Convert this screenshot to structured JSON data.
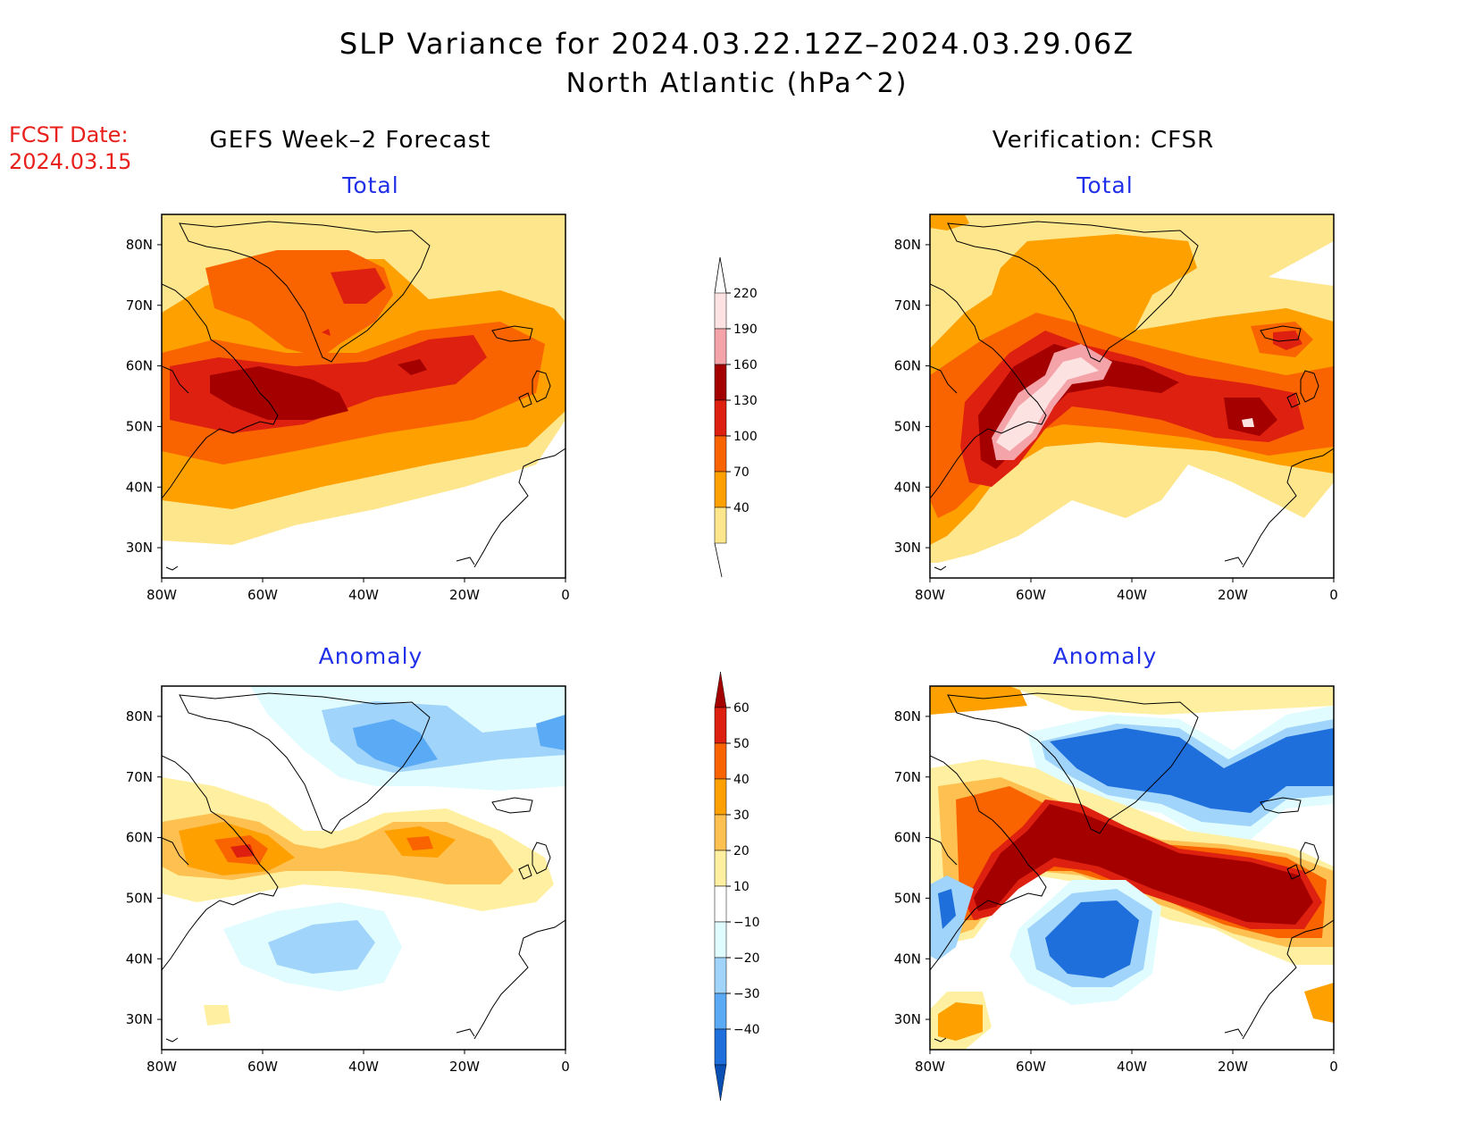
{
  "title": "SLP Variance for 2024.03.22.12Z–2024.03.29.06Z",
  "subtitle": "North Atlantic (hPa^2)",
  "fcst_label": "FCST Date:",
  "fcst_date": "2024.03.15",
  "left_column_title": "GEFS Week–2 Forecast",
  "right_column_title": "Verification: CFSR",
  "panel_titles": {
    "top": "Total",
    "bottom": "Anomaly"
  },
  "map": {
    "lat_ticks": [
      "80N",
      "70N",
      "60N",
      "50N",
      "40N",
      "30N"
    ],
    "lon_ticks": [
      "80W",
      "60W",
      "40W",
      "20W",
      "0"
    ],
    "lon_range": [
      -80,
      0
    ],
    "lat_range": [
      25,
      85
    ]
  },
  "colorbars": {
    "total": {
      "labels": [
        "220",
        "190",
        "160",
        "130",
        "100",
        "70",
        "40"
      ],
      "colors": [
        "#fde2e2",
        "#f4a3a8",
        "#a40000",
        "#de2010",
        "#fa6400",
        "#fea000",
        "#fee68c"
      ]
    },
    "anomaly": {
      "labels": [
        "60",
        "50",
        "40",
        "30",
        "20",
        "10",
        "−10",
        "−20",
        "−30",
        "−40"
      ],
      "colors": [
        "#a40000",
        "#de2010",
        "#fa6400",
        "#fea000",
        "#fec050",
        "#fef0a0",
        "#ffffff",
        "#e0fcff",
        "#a0d4fa",
        "#5aaaf5",
        "#1e6edc",
        "#0a50b4"
      ]
    }
  }
}
